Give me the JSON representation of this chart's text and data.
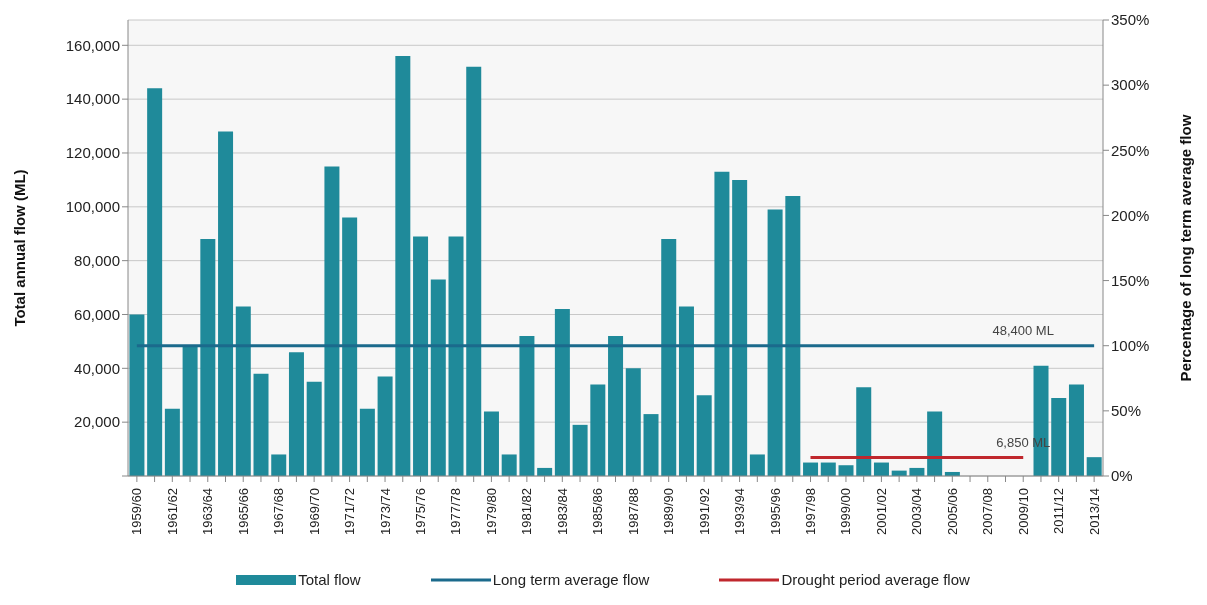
{
  "chart_data": {
    "type": "bar",
    "ylabel": "Total annual flow (ML)",
    "y2label": "Percentage of long term average flow",
    "categories": [
      "1959/60",
      null,
      "1961/62",
      null,
      "1963/64",
      null,
      "1965/66",
      null,
      "1967/68",
      null,
      "1969/70",
      null,
      "1971/72",
      null,
      "1973/74",
      null,
      "1975/76",
      null,
      "1977/78",
      null,
      "1979/80",
      null,
      "1981/82",
      null,
      "1983/84",
      null,
      "1985/86",
      null,
      "1987/88",
      null,
      "1989/90",
      null,
      "1991/92",
      null,
      "1993/94",
      null,
      "1995/96",
      null,
      "1997/98",
      null,
      "1999/00",
      null,
      "2001/02",
      null,
      "2003/04",
      null,
      "2005/06",
      null,
      "2007/08",
      null,
      "2009/10",
      null,
      "2011/12",
      null,
      "2013/14"
    ],
    "series": [
      {
        "name": "Total flow",
        "color": "#1f8a9a",
        "values": [
          60000,
          144000,
          25000,
          48000,
          88000,
          128000,
          63000,
          38000,
          8000,
          46000,
          35000,
          115000,
          96000,
          25000,
          37000,
          156000,
          89000,
          73000,
          89000,
          152000,
          24000,
          8000,
          52000,
          3000,
          62000,
          19000,
          34000,
          52000,
          40000,
          23000,
          88000,
          63000,
          30000,
          113000,
          110000,
          8000,
          99000,
          104000,
          5000,
          5000,
          4000,
          33000,
          5000,
          2000,
          3000,
          24000,
          1500,
          null,
          null,
          null,
          null,
          41000,
          29000,
          34000,
          7000
        ]
      },
      {
        "name": "Long term average flow",
        "type": "line",
        "color": "#1b6a8c",
        "values": [
          48400,
          48400,
          48400,
          48400,
          48400,
          48400,
          48400,
          48400,
          48400,
          48400,
          48400,
          48400,
          48400,
          48400,
          48400,
          48400,
          48400,
          48400,
          48400,
          48400,
          48400,
          48400,
          48400,
          48400,
          48400,
          48400,
          48400,
          48400,
          48400,
          48400,
          48400,
          48400,
          48400,
          48400,
          48400,
          48400,
          48400,
          48400,
          48400,
          48400,
          48400,
          48400,
          48400,
          48400,
          48400,
          48400,
          48400,
          48400,
          48400,
          48400,
          48400,
          48400,
          48400,
          48400,
          48400
        ]
      },
      {
        "name": "Drought period average flow",
        "type": "line",
        "color": "#c0272d",
        "values": [
          null,
          null,
          null,
          null,
          null,
          null,
          null,
          null,
          null,
          null,
          null,
          null,
          null,
          null,
          null,
          null,
          null,
          null,
          null,
          null,
          null,
          null,
          null,
          null,
          null,
          null,
          null,
          null,
          null,
          null,
          null,
          null,
          null,
          null,
          null,
          null,
          null,
          null,
          6850,
          6850,
          6850,
          6850,
          6850,
          6850,
          6850,
          6850,
          6850,
          6850,
          6850,
          6850,
          6850,
          null,
          null,
          null,
          null
        ]
      }
    ],
    "ylim": [
      0,
      169400
    ],
    "yticks": [
      {
        "value": 0,
        "label": null
      },
      {
        "value": 20000,
        "label": "20,000"
      },
      {
        "value": 40000,
        "label": "40,000"
      },
      {
        "value": 60000,
        "label": "60,000"
      },
      {
        "value": 80000,
        "label": "80,000"
      },
      {
        "value": 100000,
        "label": "100,000"
      },
      {
        "value": 120000,
        "label": "120,000"
      },
      {
        "value": 140000,
        "label": "140,000"
      },
      {
        "value": 160000,
        "label": "160,000"
      }
    ],
    "y2lim": [
      0,
      350
    ],
    "y2ticks": [
      {
        "value": 0,
        "label": "0%"
      },
      {
        "value": 50,
        "label": "50%"
      },
      {
        "value": 100,
        "label": "100%"
      },
      {
        "value": 150,
        "label": "150%"
      },
      {
        "value": 200,
        "label": "200%"
      },
      {
        "value": 250,
        "label": "250%"
      },
      {
        "value": 300,
        "label": "300%"
      },
      {
        "value": 350,
        "label": "350%"
      }
    ],
    "annotations": [
      {
        "text": "48,400 ML",
        "x": "2009/10",
        "y": 48400
      },
      {
        "text": "6,850 ML",
        "x": "2009/10",
        "y": 6850
      }
    ],
    "grid": "y",
    "legend": "bottom"
  }
}
